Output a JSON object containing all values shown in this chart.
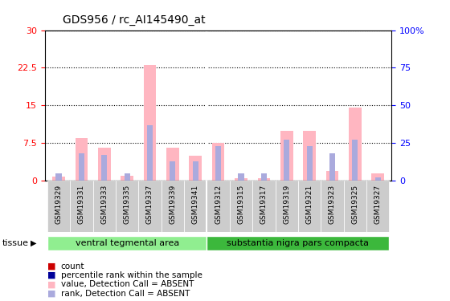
{
  "title": "GDS956 / rc_AI145490_at",
  "samples": [
    "GSM19329",
    "GSM19331",
    "GSM19333",
    "GSM19335",
    "GSM19337",
    "GSM19339",
    "GSM19341",
    "GSM19312",
    "GSM19315",
    "GSM19317",
    "GSM19319",
    "GSM19321",
    "GSM19323",
    "GSM19325",
    "GSM19327"
  ],
  "group1_count": 7,
  "group2_count": 8,
  "tissue_labels": [
    "ventral tegmental area",
    "substantia nigra pars compacta"
  ],
  "tissue_color1": "#90ee90",
  "tissue_color2": "#3cb83c",
  "ylim_left": [
    0,
    30
  ],
  "ylim_right": [
    0,
    100
  ],
  "yticks_left": [
    0,
    7.5,
    15,
    22.5,
    30
  ],
  "yticks_right": [
    0,
    25,
    50,
    75,
    100
  ],
  "ytick_left_labels": [
    "0",
    "7.5",
    "15",
    "22.5",
    "30"
  ],
  "ytick_right_labels": [
    "0",
    "25",
    "50",
    "75",
    "100%"
  ],
  "pink_values": [
    0.8,
    8.5,
    6.5,
    1.0,
    23.0,
    6.5,
    5.0,
    7.5,
    0.5,
    0.5,
    10.0,
    10.0,
    2.0,
    14.5,
    1.5
  ],
  "blue_values_pct": [
    5,
    18,
    17,
    5,
    37,
    13,
    13,
    23,
    5,
    5,
    27,
    23,
    18,
    27,
    2
  ],
  "pink_color": "#ffb6c1",
  "blue_color": "#aaaadd",
  "red_color": "#cc0000",
  "dark_blue_color": "#000099",
  "xtick_bg": "#cccccc",
  "plot_bg": "#ffffff",
  "legend_labels": [
    "count",
    "percentile rank within the sample",
    "value, Detection Call = ABSENT",
    "rank, Detection Call = ABSENT"
  ],
  "legend_colors": [
    "#cc0000",
    "#000099",
    "#ffb6c1",
    "#aaaadd"
  ]
}
